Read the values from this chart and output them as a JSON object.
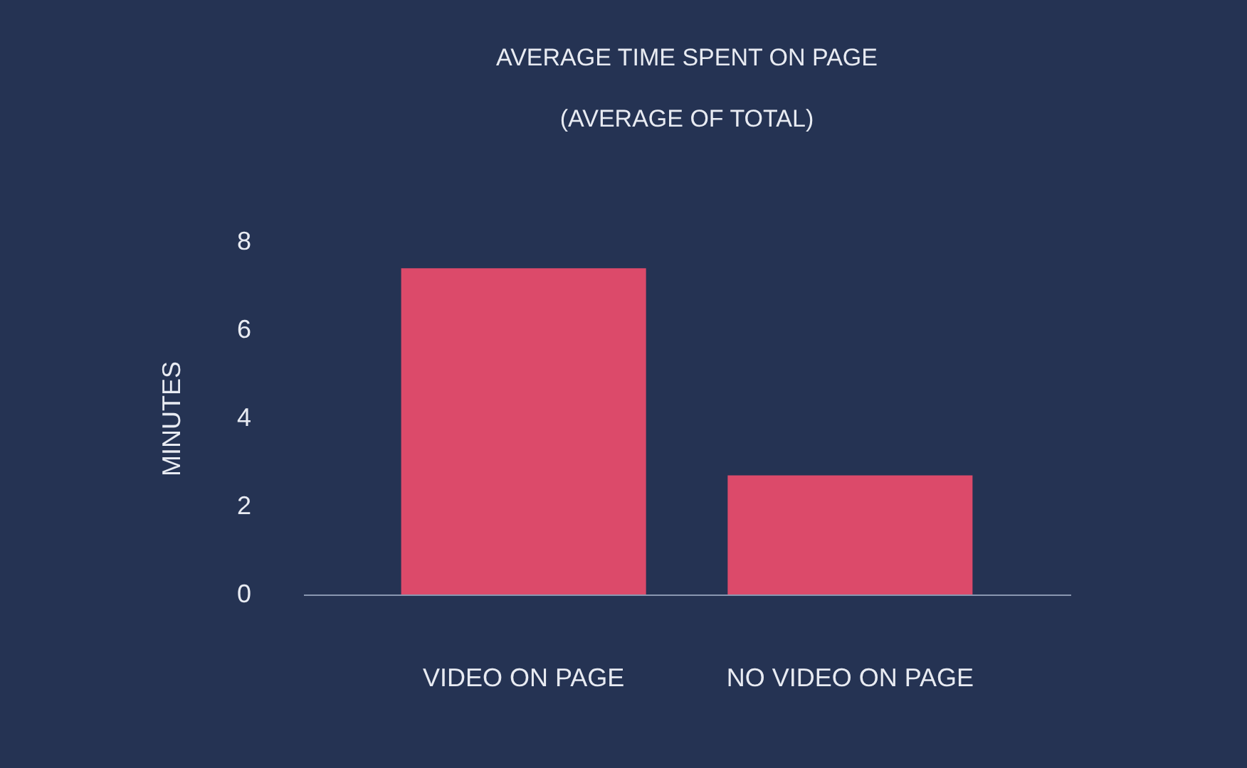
{
  "chart_data": {
    "type": "bar",
    "title": "AVERAGE TIME SPENT ON PAGE",
    "subtitle": "(AVERAGE OF TOTAL)",
    "ylabel": "MINUTES",
    "categories": [
      "VIDEO ON PAGE",
      "NO VIDEO ON PAGE"
    ],
    "values": [
      7.4,
      2.7
    ],
    "color": "#dc4a6a",
    "ylim": [
      0,
      8
    ],
    "yticks": [
      0,
      2,
      4,
      6,
      8
    ],
    "grid": false
  }
}
